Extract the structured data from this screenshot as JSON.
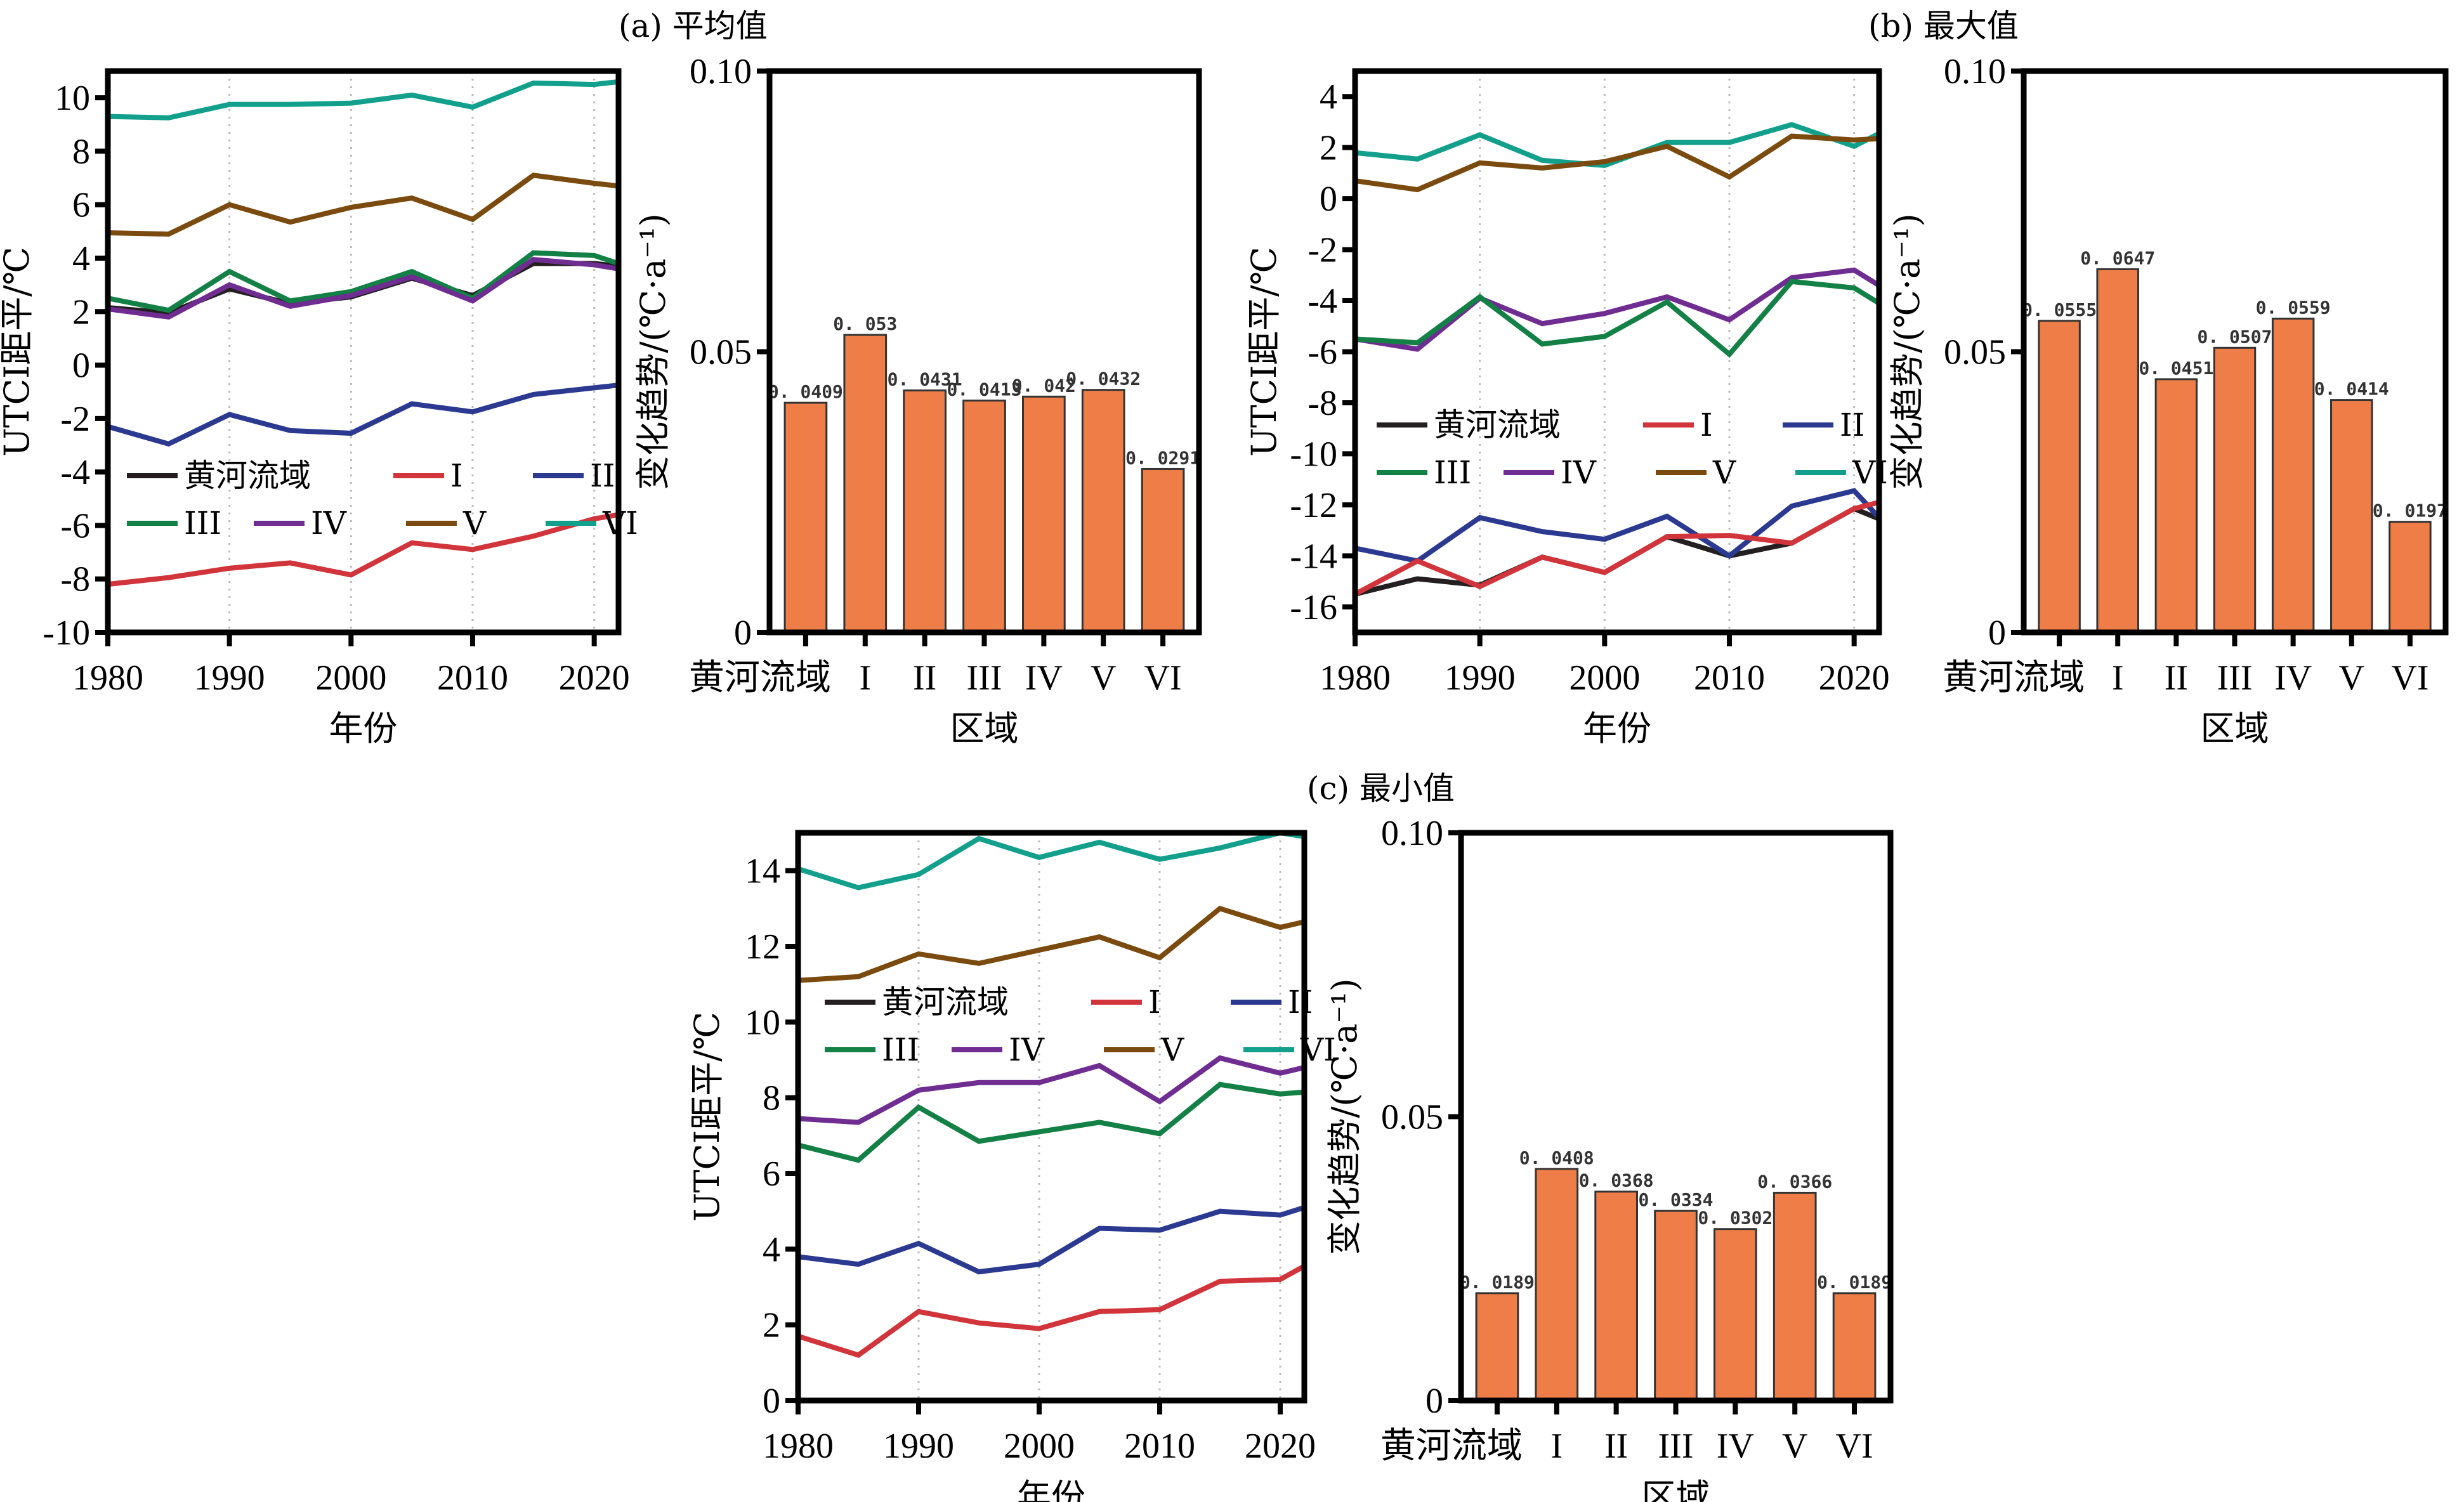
{
  "figure": {
    "series_colors": {
      "黄河流域": "#231f20",
      "I": "#d1343a",
      "II": "#2b3990",
      "III": "#138046",
      "IV": "#6f2c91",
      "V": "#7a4a0e",
      "VI": "#12a08c"
    },
    "bar_color": "#ee7d48",
    "bar_edge_color": "#333333"
  },
  "chart_data": [
    {
      "id": "a-line",
      "type": "line",
      "panel_title": "(a) 平均值",
      "xlabel": "年份",
      "ylabel": "UTCI距平/℃",
      "xlim": [
        1980,
        2022
      ],
      "ylim": [
        -10,
        11
      ],
      "xticks": [
        1980,
        1990,
        2000,
        2010,
        2020
      ],
      "yticks": [
        -10,
        -8,
        -6,
        -4,
        -2,
        0,
        2,
        4,
        6,
        8,
        10
      ],
      "grid": "vertical-dotted",
      "legend": {
        "placement": "lower-left",
        "entries": [
          "黄河流域",
          "I",
          "II",
          "III",
          "IV",
          "V",
          "VI"
        ]
      },
      "x": [
        1980,
        1985,
        1990,
        1995,
        2000,
        2005,
        2010,
        2015,
        2020,
        2022
      ],
      "series": [
        {
          "name": "VI",
          "values": [
            9.3,
            9.25,
            9.75,
            9.75,
            9.8,
            10.1,
            9.65,
            10.55,
            10.5,
            10.6
          ]
        },
        {
          "name": "V",
          "values": [
            4.95,
            4.9,
            6.0,
            5.35,
            5.9,
            6.25,
            5.45,
            7.1,
            6.8,
            6.7
          ]
        },
        {
          "name": "黄河流域",
          "values": [
            2.15,
            1.95,
            2.85,
            2.3,
            2.55,
            3.25,
            2.6,
            3.8,
            3.8,
            3.7
          ]
        },
        {
          "name": "III",
          "values": [
            2.5,
            2.05,
            3.5,
            2.4,
            2.75,
            3.5,
            2.5,
            4.2,
            4.1,
            3.8
          ]
        },
        {
          "name": "IV",
          "values": [
            2.1,
            1.8,
            3.0,
            2.2,
            2.6,
            3.3,
            2.4,
            3.95,
            3.75,
            3.6
          ]
        },
        {
          "name": "II",
          "values": [
            -2.3,
            -2.95,
            -1.85,
            -2.45,
            -2.55,
            -1.45,
            -1.75,
            -1.1,
            -0.85,
            -0.75
          ]
        },
        {
          "name": "I",
          "values": [
            -8.2,
            -7.95,
            -7.6,
            -7.4,
            -7.85,
            -6.65,
            -6.9,
            -6.4,
            -5.75,
            -5.6
          ]
        }
      ]
    },
    {
      "id": "a-bar",
      "type": "bar",
      "xlabel": "区域",
      "ylabel": "变化趋势/(℃·a⁻¹)",
      "ylim": [
        0,
        0.1
      ],
      "yticks": [
        0,
        0.05,
        0.1
      ],
      "ytick_labels": [
        "0",
        "0.05",
        "0.10"
      ],
      "categories": [
        "黄河流域",
        "I",
        "II",
        "III",
        "IV",
        "V",
        "VI"
      ],
      "values": [
        0.0409,
        0.053,
        0.0431,
        0.0413,
        0.042,
        0.0432,
        0.0291
      ],
      "value_labels": [
        "0.0409",
        "0.053",
        "0.0431",
        "0.0413",
        "0.042",
        "0.0432",
        "0.0291"
      ]
    },
    {
      "id": "b-line",
      "type": "line",
      "xlabel": "年份",
      "ylabel": "UTCI距平/℃",
      "xlim": [
        1980,
        2022
      ],
      "ylim": [
        -17,
        5
      ],
      "xticks": [
        1980,
        1990,
        2000,
        2010,
        2020
      ],
      "yticks": [
        -16,
        -14,
        -12,
        -10,
        -8,
        -6,
        -4,
        -2,
        0,
        2,
        4
      ],
      "grid": "vertical-dotted",
      "legend": {
        "placement": "center-left",
        "entries": [
          "黄河流域",
          "I",
          "II",
          "III",
          "IV",
          "V",
          "VI"
        ]
      },
      "x": [
        1980,
        1985,
        1990,
        1995,
        2000,
        2005,
        2010,
        2015,
        2020,
        2022
      ],
      "series": [
        {
          "name": "VI",
          "values": [
            1.8,
            1.55,
            2.5,
            1.5,
            1.3,
            2.2,
            2.2,
            2.9,
            2.05,
            2.55
          ]
        },
        {
          "name": "V",
          "values": [
            0.7,
            0.35,
            1.4,
            1.2,
            1.45,
            2.05,
            0.85,
            2.45,
            2.3,
            2.35
          ]
        },
        {
          "name": "IV",
          "values": [
            -5.5,
            -5.9,
            -3.9,
            -4.9,
            -4.5,
            -3.85,
            -4.75,
            -3.1,
            -2.8,
            -3.4
          ]
        },
        {
          "name": "III",
          "values": [
            -5.5,
            -5.65,
            -3.85,
            -5.7,
            -5.4,
            -4.05,
            -6.1,
            -3.25,
            -3.5,
            -4.1
          ]
        },
        {
          "name": "黄河流域",
          "values": [
            -15.5,
            -14.9,
            -15.15,
            -14.05,
            -14.65,
            -13.25,
            -14.0,
            -13.5,
            -12.15,
            -12.55
          ]
        },
        {
          "name": "II",
          "values": [
            -13.7,
            -14.2,
            -12.5,
            -13.05,
            -13.35,
            -12.45,
            -14.0,
            -12.05,
            -11.45,
            -12.5
          ]
        },
        {
          "name": "I",
          "values": [
            -15.5,
            -14.2,
            -15.2,
            -14.05,
            -14.65,
            -13.25,
            -13.2,
            -13.5,
            -12.15,
            -11.9
          ]
        }
      ]
    },
    {
      "id": "b-bar",
      "type": "bar",
      "panel_title": "(b) 最大值",
      "xlabel": "区域",
      "ylabel": "变化趋势/(℃·a⁻¹)",
      "ylim": [
        0,
        0.1
      ],
      "yticks": [
        0,
        0.05,
        0.1
      ],
      "ytick_labels": [
        "0",
        "0.05",
        "0.10"
      ],
      "categories": [
        "黄河流域",
        "I",
        "II",
        "III",
        "IV",
        "V",
        "VI"
      ],
      "values": [
        0.0555,
        0.0647,
        0.0451,
        0.0507,
        0.0559,
        0.0414,
        0.0197
      ],
      "value_labels": [
        "0.0555",
        "0.0647",
        "0.0451",
        "0.0507",
        "0.0559",
        "0.0414",
        "0.0197"
      ]
    },
    {
      "id": "c-line",
      "type": "line",
      "xlabel": "年份",
      "ylabel": "UTCI距平/℃",
      "xlim": [
        1980,
        2022
      ],
      "ylim": [
        0,
        15
      ],
      "xticks": [
        1980,
        1990,
        2000,
        2010,
        2020
      ],
      "yticks": [
        0,
        2,
        4,
        6,
        8,
        10,
        12,
        14
      ],
      "grid": "vertical-dotted",
      "legend": {
        "placement": "upper-left",
        "entries": [
          "黄河流域",
          "I",
          "II",
          "III",
          "IV",
          "V",
          "VI"
        ]
      },
      "x": [
        1980,
        1985,
        1990,
        1995,
        2000,
        2005,
        2010,
        2015,
        2020,
        2022
      ],
      "series": [
        {
          "name": "VI",
          "values": [
            14.05,
            13.55,
            13.9,
            14.85,
            14.35,
            14.75,
            14.3,
            14.6,
            15.0,
            14.9
          ]
        },
        {
          "name": "V",
          "values": [
            11.1,
            11.2,
            11.8,
            11.55,
            11.9,
            12.25,
            11.7,
            13.0,
            12.5,
            12.65
          ]
        },
        {
          "name": "IV",
          "values": [
            7.45,
            7.35,
            8.2,
            8.4,
            8.4,
            8.85,
            7.9,
            9.05,
            8.65,
            8.8
          ]
        },
        {
          "name": "III",
          "values": [
            6.75,
            6.35,
            7.75,
            6.85,
            7.1,
            7.35,
            7.05,
            8.35,
            8.1,
            8.15
          ]
        },
        {
          "name": "II",
          "values": [
            3.8,
            3.6,
            4.15,
            3.4,
            3.6,
            4.55,
            4.5,
            5.0,
            4.9,
            5.1
          ]
        },
        {
          "name": "I",
          "values": [
            1.7,
            1.2,
            2.35,
            2.05,
            1.9,
            2.35,
            2.4,
            3.15,
            3.2,
            3.55
          ]
        }
      ]
    },
    {
      "id": "c-bar",
      "type": "bar",
      "panel_title": "(c) 最小值",
      "xlabel": "区域",
      "ylabel": "变化趋势/(℃·a⁻¹)",
      "ylim": [
        0,
        0.1
      ],
      "yticks": [
        0,
        0.05,
        0.1
      ],
      "ytick_labels": [
        "0",
        "0.05",
        "0.10"
      ],
      "categories": [
        "黄河流域",
        "I",
        "II",
        "III",
        "IV",
        "V",
        "VI"
      ],
      "values": [
        0.0189,
        0.0408,
        0.0368,
        0.0334,
        0.0302,
        0.0366,
        0.0189
      ],
      "value_labels": [
        "0.0189",
        "0.0408",
        "0.0368",
        "0.0334",
        "0.0302",
        "0.0366",
        "0.0189"
      ]
    }
  ]
}
